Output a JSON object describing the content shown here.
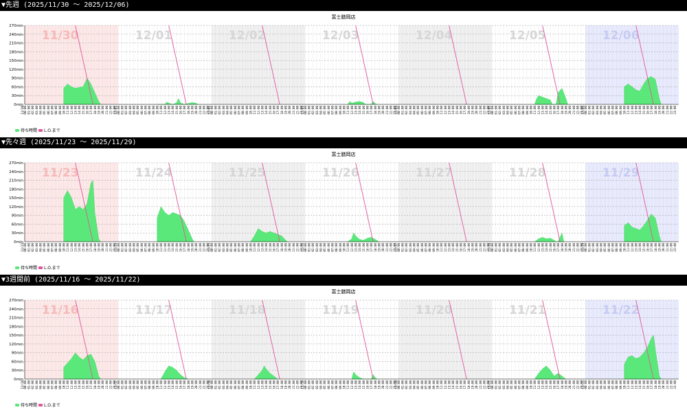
{
  "sections": [
    {
      "label": "▼先週 (2025/11/30 ～ 2025/12/06)"
    },
    {
      "label": "▼先々週 (2025/11/23 ～ 2025/11/29)"
    },
    {
      "label": "▼3週間前 (2025/11/16 ～ 2025/11/22)"
    }
  ],
  "chart_data": [
    {
      "type": "area",
      "title": "富士膳岡店",
      "ylim": [
        0,
        270
      ],
      "yticks": [
        "0min",
        "30min",
        "60min",
        "90min",
        "120min",
        "150min",
        "180min",
        "210min",
        "240min",
        "270min"
      ],
      "hours": [
        "00:00",
        "01:00",
        "02:00",
        "03:00",
        "04:00",
        "05:00",
        "06:00",
        "07:00",
        "08:00",
        "09:00",
        "10:00",
        "11:00",
        "12:00",
        "13:00",
        "14:00",
        "15:00",
        "16:00",
        "17:00",
        "18:00",
        "19:00",
        "20:00",
        "21:00",
        "22:00",
        "23:00"
      ],
      "days": [
        "11/30",
        "12/01",
        "12/02",
        "12/03",
        "12/04",
        "12/05",
        "12/06"
      ],
      "day_axis_labels": [
        "11/30",
        "12/01",
        "12/02",
        "12/03",
        "12/04",
        "12/05",
        "12/06"
      ],
      "legend": [
        "待ち時間",
        "L.O.まで"
      ],
      "colors": {
        "area": "#5be87a",
        "line": "#e0569b",
        "sun": "#fde8e8",
        "sat": "#e8eafd",
        "alt": "#f0f0f0"
      },
      "series_wait": [
        [
          [
            10,
            0
          ],
          [
            10,
            55
          ],
          [
            11,
            70
          ],
          [
            12,
            60
          ],
          [
            13,
            55
          ],
          [
            14,
            58
          ],
          [
            15,
            60
          ],
          [
            16,
            90
          ],
          [
            17,
            70
          ],
          [
            18,
            40
          ],
          [
            19,
            10
          ],
          [
            19.5,
            0
          ]
        ],
        [
          [
            10,
            0
          ],
          [
            12,
            0
          ],
          [
            12.5,
            8
          ],
          [
            13,
            4
          ],
          [
            14,
            0
          ],
          [
            15,
            5
          ],
          [
            15.5,
            20
          ],
          [
            16,
            5
          ],
          [
            17,
            0
          ],
          [
            19,
            6
          ],
          [
            20,
            4
          ],
          [
            20.5,
            0
          ]
        ],
        [],
        [
          [
            11,
            0
          ],
          [
            11.5,
            10
          ],
          [
            12,
            4
          ],
          [
            13,
            8
          ],
          [
            14,
            10
          ],
          [
            15,
            6
          ],
          [
            15.5,
            0
          ],
          [
            17,
            0
          ],
          [
            17.5,
            10
          ],
          [
            18,
            3
          ],
          [
            18.5,
            0
          ]
        ],
        [],
        [
          [
            11,
            0
          ],
          [
            11.5,
            20
          ],
          [
            12,
            30
          ],
          [
            13,
            25
          ],
          [
            14,
            20
          ],
          [
            15,
            15
          ],
          [
            15.5,
            0
          ],
          [
            16.5,
            0
          ],
          [
            17,
            40
          ],
          [
            18,
            55
          ],
          [
            19,
            20
          ],
          [
            19.5,
            0
          ]
        ],
        [
          [
            10,
            0
          ],
          [
            10,
            60
          ],
          [
            11,
            70
          ],
          [
            12,
            60
          ],
          [
            13,
            50
          ],
          [
            14,
            45
          ],
          [
            15,
            70
          ],
          [
            16,
            90
          ],
          [
            17,
            95
          ],
          [
            18,
            85
          ],
          [
            19,
            20
          ],
          [
            19.5,
            0
          ]
        ]
      ],
      "lo_minutes_at_open": 450
    },
    {
      "type": "area",
      "title": "富士膳岡店",
      "ylim": [
        0,
        270
      ],
      "yticks": [
        "0min",
        "30min",
        "60min",
        "90min",
        "120min",
        "150min",
        "180min",
        "210min",
        "240min",
        "270min"
      ],
      "hours": [
        "00:00",
        "01:00",
        "02:00",
        "03:00",
        "04:00",
        "05:00",
        "06:00",
        "07:00",
        "08:00",
        "09:00",
        "10:00",
        "11:00",
        "12:00",
        "13:00",
        "14:00",
        "15:00",
        "16:00",
        "17:00",
        "18:00",
        "19:00",
        "20:00",
        "21:00",
        "22:00",
        "23:00"
      ],
      "days": [
        "11/23",
        "11/24",
        "11/25",
        "11/26",
        "11/27",
        "11/28",
        "11/29"
      ],
      "day_axis_labels": [
        "11/23",
        "11/24",
        "11/25",
        "11/26",
        "11/27",
        "11/28",
        "11/29"
      ],
      "legend": [
        "待ち時間",
        "L.O.まで"
      ],
      "colors": {
        "area": "#5be87a",
        "line": "#e0569b",
        "sun": "#fde8e8",
        "sat": "#e8eafd",
        "alt": "#f0f0f0"
      },
      "series_wait": [
        [
          [
            10,
            0
          ],
          [
            10,
            150
          ],
          [
            11,
            175
          ],
          [
            12,
            150
          ],
          [
            13,
            110
          ],
          [
            14,
            120
          ],
          [
            15,
            110
          ],
          [
            16,
            130
          ],
          [
            17,
            200
          ],
          [
            17.5,
            210
          ],
          [
            18,
            100
          ],
          [
            19,
            10
          ],
          [
            19.5,
            0
          ]
        ],
        [
          [
            10,
            0
          ],
          [
            10,
            80
          ],
          [
            11,
            120
          ],
          [
            12,
            100
          ],
          [
            13,
            90
          ],
          [
            14,
            100
          ],
          [
            15,
            95
          ],
          [
            16,
            90
          ],
          [
            17,
            70
          ],
          [
            18,
            40
          ],
          [
            19,
            10
          ],
          [
            19.5,
            0
          ]
        ],
        [
          [
            10,
            0
          ],
          [
            11,
            20
          ],
          [
            12,
            45
          ],
          [
            13,
            35
          ],
          [
            14,
            30
          ],
          [
            15,
            35
          ],
          [
            16,
            30
          ],
          [
            17,
            25
          ],
          [
            18,
            20
          ],
          [
            19,
            5
          ],
          [
            19.5,
            0
          ]
        ],
        [
          [
            11,
            0
          ],
          [
            12,
            10
          ],
          [
            12.5,
            30
          ],
          [
            13,
            20
          ],
          [
            14,
            8
          ],
          [
            15,
            5
          ],
          [
            16,
            12
          ],
          [
            17,
            15
          ],
          [
            18,
            8
          ],
          [
            19,
            0
          ]
        ],
        [],
        [
          [
            11,
            0
          ],
          [
            12,
            10
          ],
          [
            13,
            15
          ],
          [
            14,
            10
          ],
          [
            15,
            12
          ],
          [
            16,
            5
          ],
          [
            16.5,
            0
          ],
          [
            17,
            0
          ],
          [
            18,
            30
          ],
          [
            18.5,
            0
          ]
        ],
        [
          [
            10,
            0
          ],
          [
            10,
            55
          ],
          [
            11,
            65
          ],
          [
            12,
            50
          ],
          [
            13,
            45
          ],
          [
            14,
            40
          ],
          [
            15,
            55
          ],
          [
            16,
            75
          ],
          [
            17,
            95
          ],
          [
            18,
            80
          ],
          [
            19,
            20
          ],
          [
            19.5,
            0
          ]
        ]
      ],
      "lo_minutes_at_open": 450
    },
    {
      "type": "area",
      "title": "富士膳岡店",
      "ylim": [
        0,
        270
      ],
      "yticks": [
        "0min",
        "30min",
        "60min",
        "90min",
        "120min",
        "150min",
        "180min",
        "210min",
        "240min",
        "270min"
      ],
      "hours": [
        "00:00",
        "01:00",
        "02:00",
        "03:00",
        "04:00",
        "05:00",
        "06:00",
        "07:00",
        "08:00",
        "09:00",
        "10:00",
        "11:00",
        "12:00",
        "13:00",
        "14:00",
        "15:00",
        "16:00",
        "17:00",
        "18:00",
        "19:00",
        "20:00",
        "21:00",
        "22:00",
        "23:00"
      ],
      "days": [
        "11/16",
        "11/17",
        "11/18",
        "11/19",
        "11/20",
        "11/21",
        "11/22"
      ],
      "day_axis_labels": [
        "11/16",
        "11/17",
        "11/18",
        "11/19",
        "11/20",
        "11/21",
        "11/22"
      ],
      "legend": [
        "待ち時間",
        "L.O.まで"
      ],
      "colors": {
        "area": "#5be87a",
        "line": "#e0569b",
        "sun": "#fde8e8",
        "sat": "#e8eafd",
        "alt": "#f0f0f0"
      },
      "series_wait": [
        [
          [
            10,
            0
          ],
          [
            10,
            40
          ],
          [
            11,
            55
          ],
          [
            12,
            70
          ],
          [
            13,
            90
          ],
          [
            14,
            75
          ],
          [
            15,
            65
          ],
          [
            16,
            80
          ],
          [
            17,
            85
          ],
          [
            18,
            60
          ],
          [
            19,
            10
          ],
          [
            19.5,
            0
          ]
        ],
        [
          [
            11,
            0
          ],
          [
            12,
            25
          ],
          [
            13,
            45
          ],
          [
            14,
            40
          ],
          [
            15,
            30
          ],
          [
            16,
            15
          ],
          [
            17,
            5
          ],
          [
            18,
            0
          ]
        ],
        [
          [
            11,
            0
          ],
          [
            12,
            15
          ],
          [
            13,
            30
          ],
          [
            13.5,
            45
          ],
          [
            14,
            35
          ],
          [
            15,
            20
          ],
          [
            16,
            10
          ],
          [
            17,
            0
          ]
        ],
        [
          [
            12,
            0
          ],
          [
            12.5,
            25
          ],
          [
            13,
            15
          ],
          [
            14,
            5
          ],
          [
            15,
            0
          ],
          [
            17,
            0
          ],
          [
            17.5,
            15
          ],
          [
            18,
            5
          ],
          [
            18.5,
            0
          ]
        ],
        [],
        [
          [
            11,
            0
          ],
          [
            12,
            20
          ],
          [
            13,
            35
          ],
          [
            14,
            45
          ],
          [
            15,
            30
          ],
          [
            16,
            10
          ],
          [
            17,
            20
          ],
          [
            18,
            10
          ],
          [
            19,
            0
          ]
        ],
        [
          [
            10,
            0
          ],
          [
            10,
            50
          ],
          [
            11,
            75
          ],
          [
            12,
            80
          ],
          [
            13,
            70
          ],
          [
            14,
            75
          ],
          [
            15,
            90
          ],
          [
            16,
            110
          ],
          [
            17,
            140
          ],
          [
            17.5,
            150
          ],
          [
            18,
            100
          ],
          [
            19,
            10
          ],
          [
            19.5,
            0
          ]
        ]
      ],
      "lo_minutes_at_open": 450
    }
  ]
}
